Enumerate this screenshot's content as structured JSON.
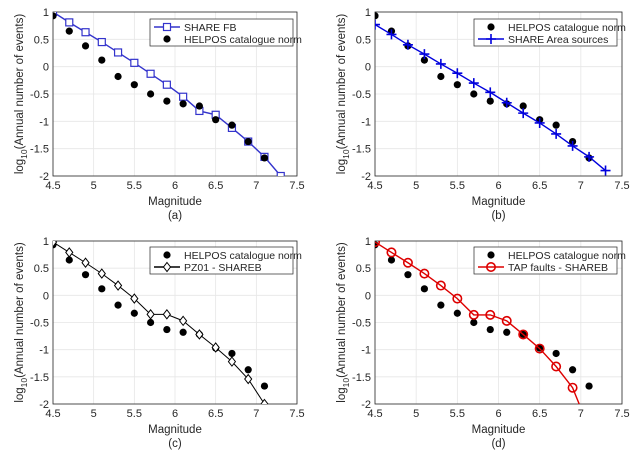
{
  "chart_data": [
    {
      "type": "line",
      "panel_label": "(a)",
      "xlabel": "Magnitude",
      "ylabel": "log10(Annual number of events)",
      "xlim": [
        4.5,
        7.5
      ],
      "ylim": [
        -2,
        1
      ],
      "xticks": [
        4.5,
        5,
        5.5,
        6,
        6.5,
        7,
        7.5
      ],
      "yticks": [
        -2,
        -1.5,
        -1,
        -0.5,
        0,
        0.5,
        1
      ],
      "grid": true,
      "legend_position": "top-right",
      "series": [
        {
          "name": "SHARE FB",
          "style": "line-square",
          "color": "#3333cc",
          "x": [
            4.5,
            4.7,
            4.9,
            5.1,
            5.3,
            5.5,
            5.7,
            5.9,
            6.1,
            6.3,
            6.5,
            6.7,
            6.9,
            7.1,
            7.3
          ],
          "y": [
            1.0,
            0.81,
            0.63,
            0.45,
            0.26,
            0.07,
            -0.13,
            -0.33,
            -0.55,
            -0.81,
            -0.88,
            -1.12,
            -1.37,
            -1.65,
            -2.0
          ]
        },
        {
          "name": "HELPOS catalogue norm",
          "style": "dot",
          "color": "#000000",
          "x": [
            4.5,
            4.7,
            4.9,
            5.1,
            5.3,
            5.5,
            5.7,
            5.9,
            6.1,
            6.3,
            6.5,
            6.7,
            6.9,
            7.1
          ],
          "y": [
            0.93,
            0.65,
            0.38,
            0.12,
            -0.18,
            -0.33,
            -0.5,
            -0.63,
            -0.68,
            -0.72,
            -0.97,
            -1.07,
            -1.37,
            -1.67
          ]
        }
      ]
    },
    {
      "type": "line",
      "panel_label": "(b)",
      "xlabel": "Magnitude",
      "ylabel": "log10(Annual number of events)",
      "xlim": [
        4.5,
        7.5
      ],
      "ylim": [
        -2,
        1
      ],
      "xticks": [
        4.5,
        5,
        5.5,
        6,
        6.5,
        7,
        7.5
      ],
      "yticks": [
        -2,
        -1.5,
        -1,
        -0.5,
        0,
        0.5,
        1
      ],
      "grid": true,
      "legend_position": "top-right",
      "series": [
        {
          "name": "HELPOS catalogue norm",
          "style": "dot",
          "color": "#000000",
          "x": [
            4.5,
            4.7,
            4.9,
            5.1,
            5.3,
            5.5,
            5.7,
            5.9,
            6.1,
            6.3,
            6.5,
            6.7,
            6.9,
            7.1
          ],
          "y": [
            0.93,
            0.65,
            0.38,
            0.12,
            -0.18,
            -0.33,
            -0.5,
            -0.63,
            -0.68,
            -0.72,
            -0.97,
            -1.07,
            -1.37,
            -1.67
          ]
        },
        {
          "name": "SHARE Area sources",
          "style": "line-plus",
          "color": "#0000dd",
          "x": [
            4.5,
            4.7,
            4.9,
            5.1,
            5.3,
            5.5,
            5.7,
            5.9,
            6.1,
            6.3,
            6.5,
            6.7,
            6.9,
            7.1,
            7.3
          ],
          "y": [
            0.77,
            0.59,
            0.4,
            0.23,
            0.05,
            -0.12,
            -0.3,
            -0.47,
            -0.66,
            -0.85,
            -1.03,
            -1.23,
            -1.45,
            -1.65,
            -1.9
          ]
        }
      ]
    },
    {
      "type": "line",
      "panel_label": "(c)",
      "xlabel": "Magnitude",
      "ylabel": "log10(Annual number of events)",
      "xlim": [
        4.5,
        7.5
      ],
      "ylim": [
        -2,
        1
      ],
      "xticks": [
        4.5,
        5,
        5.5,
        6,
        6.5,
        7,
        7.5
      ],
      "yticks": [
        -2,
        -1.5,
        -1,
        -0.5,
        0,
        0.5,
        1
      ],
      "grid": true,
      "legend_position": "top-right",
      "series": [
        {
          "name": "HELPOS catalogue norm",
          "style": "dot",
          "color": "#000000",
          "x": [
            4.5,
            4.7,
            4.9,
            5.1,
            5.3,
            5.5,
            5.7,
            5.9,
            6.1,
            6.3,
            6.5,
            6.7,
            6.9,
            7.1
          ],
          "y": [
            0.93,
            0.65,
            0.38,
            0.12,
            -0.18,
            -0.33,
            -0.5,
            -0.63,
            -0.68,
            -0.72,
            -0.97,
            -1.07,
            -1.37,
            -1.67
          ]
        },
        {
          "name": "PZ01 - SHAREB",
          "style": "line-diamond",
          "color": "#000000",
          "x": [
            4.5,
            4.7,
            4.9,
            5.1,
            5.3,
            5.5,
            5.7,
            5.9,
            6.1,
            6.3,
            6.5,
            6.7,
            6.9,
            7.1
          ],
          "y": [
            0.98,
            0.79,
            0.6,
            0.4,
            0.18,
            -0.06,
            -0.35,
            -0.35,
            -0.47,
            -0.72,
            -0.96,
            -1.22,
            -1.54,
            -2.0
          ]
        }
      ]
    },
    {
      "type": "line",
      "panel_label": "(d)",
      "xlabel": "Magnitude",
      "ylabel": "log10(Annual number of events)",
      "xlim": [
        4.5,
        7.5
      ],
      "ylim": [
        -2,
        1
      ],
      "xticks": [
        4.5,
        5,
        5.5,
        6,
        6.5,
        7,
        7.5
      ],
      "yticks": [
        -2,
        -1.5,
        -1,
        -0.5,
        0,
        0.5,
        1
      ],
      "grid": true,
      "legend_position": "top-right",
      "series": [
        {
          "name": "HELPOS catalogue norm",
          "style": "dot",
          "color": "#000000",
          "x": [
            4.5,
            4.7,
            4.9,
            5.1,
            5.3,
            5.5,
            5.7,
            5.9,
            6.1,
            6.3,
            6.5,
            6.7,
            6.9,
            7.1
          ],
          "y": [
            0.93,
            0.65,
            0.38,
            0.12,
            -0.18,
            -0.33,
            -0.5,
            -0.63,
            -0.68,
            -0.72,
            -0.97,
            -1.07,
            -1.37,
            -1.67
          ]
        },
        {
          "name": "TAP faults - SHAREB",
          "style": "line-circle",
          "color": "#dd0000",
          "x": [
            4.5,
            4.7,
            4.9,
            5.1,
            5.3,
            5.5,
            5.7,
            5.9,
            6.1,
            6.3,
            6.5,
            6.7,
            6.9,
            7.1
          ],
          "y": [
            0.98,
            0.79,
            0.6,
            0.4,
            0.18,
            -0.06,
            -0.36,
            -0.36,
            -0.47,
            -0.72,
            -0.98,
            -1.31,
            -1.7,
            -2.45
          ]
        }
      ]
    }
  ]
}
